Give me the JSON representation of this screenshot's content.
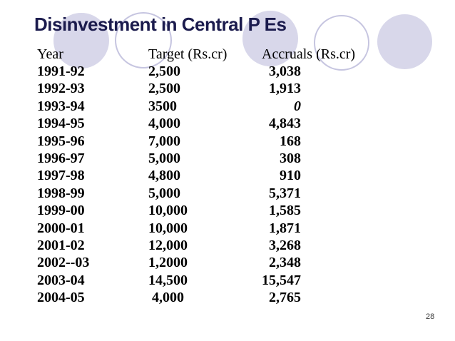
{
  "slide": {
    "title": "Disinvestment in Central P Es",
    "page_number": "28",
    "colors": {
      "background": "#ffffff",
      "title_text": "#1b1b4d",
      "body_text": "#000000",
      "circle_fill": "#d8d7ea",
      "circle_outline": "#c6c5e0",
      "page_number_text": "#3a3a3a"
    }
  },
  "table": {
    "headers": [
      "Year",
      "Target (Rs.cr)",
      "Accruals (Rs.cr)"
    ],
    "rows": [
      {
        "year": "1991-92",
        "target": "2,500",
        "accruals": "3,038"
      },
      {
        "year": "1992-93",
        "target": "2,500",
        "accruals": "1,913"
      },
      {
        "year": "1993-94",
        "target": "3500",
        "accruals": "0",
        "accruals_italic": true
      },
      {
        "year": "1994-95",
        "target": "4,000",
        "accruals": "4,843"
      },
      {
        "year": "1995-96",
        "target": "7,000",
        "accruals": "168"
      },
      {
        "year": "1996-97",
        "target": "5,000",
        "accruals": "308"
      },
      {
        "year": "1997-98",
        "target": "4,800",
        "accruals": "910"
      },
      {
        "year": "1998-99",
        "target": "5,000",
        "accruals": "5,371"
      },
      {
        "year": "1999-00",
        "target": "10,000",
        "accruals": "1,585"
      },
      {
        "year": "2000-01",
        "target": "10,000",
        "accruals": "1,871"
      },
      {
        "year": "2001-02",
        "target": "12,000",
        "accruals": "3,268"
      },
      {
        "year": "2002--03",
        "target": "1,2000",
        "accruals": "2,348"
      },
      {
        "year": "2003-04",
        "target": "14,500",
        "accruals": "15,547"
      },
      {
        "year": "2004-05",
        "target": " 4,000",
        "accruals": "2,765"
      }
    ]
  }
}
